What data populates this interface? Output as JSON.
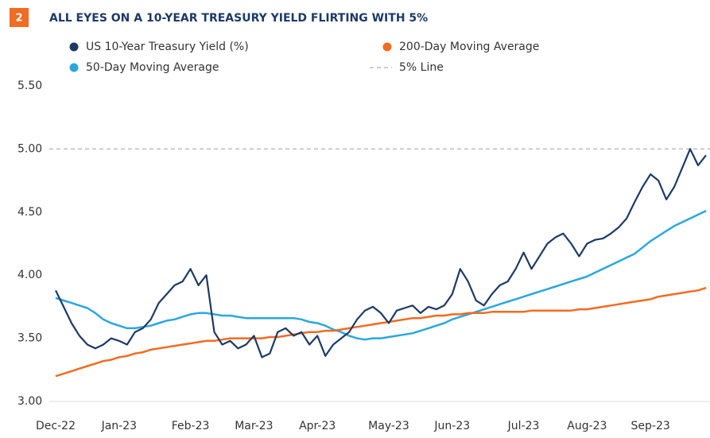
{
  "chart_data": {
    "type": "line",
    "badge": "2",
    "title": "ALL EYES ON A 10-YEAR TREASURY YIELD FLIRTING WITH 5%",
    "categories": [
      "Dec-22",
      null,
      null,
      null,
      null,
      null,
      null,
      null,
      "Jan-23",
      null,
      null,
      null,
      null,
      null,
      null,
      null,
      null,
      "Feb-23",
      null,
      null,
      null,
      null,
      null,
      null,
      null,
      "Mar-23",
      null,
      null,
      null,
      null,
      null,
      null,
      null,
      "Apr-23",
      null,
      null,
      null,
      null,
      null,
      null,
      null,
      null,
      "May-23",
      null,
      null,
      null,
      null,
      null,
      null,
      null,
      "Jun-23",
      null,
      null,
      null,
      null,
      null,
      null,
      null,
      null,
      "Jul-23",
      null,
      null,
      null,
      null,
      null,
      null,
      null,
      "Aug-23",
      null,
      null,
      null,
      null,
      null,
      null,
      null,
      "Sep-23",
      null,
      null,
      null,
      null,
      null,
      null,
      null
    ],
    "series": [
      {
        "name": "US 10-Year Treasury Yield (%)",
        "color": "#1d3a66",
        "values": [
          3.88,
          3.75,
          3.62,
          3.52,
          3.45,
          3.42,
          3.45,
          3.5,
          3.48,
          3.45,
          3.55,
          3.58,
          3.65,
          3.78,
          3.85,
          3.92,
          3.95,
          4.05,
          3.92,
          4.0,
          3.55,
          3.45,
          3.48,
          3.42,
          3.45,
          3.52,
          3.35,
          3.38,
          3.55,
          3.58,
          3.52,
          3.55,
          3.45,
          3.52,
          3.36,
          3.45,
          3.5,
          3.55,
          3.65,
          3.72,
          3.75,
          3.7,
          3.62,
          3.72,
          3.74,
          3.76,
          3.7,
          3.75,
          3.73,
          3.76,
          3.85,
          4.05,
          3.95,
          3.8,
          3.76,
          3.85,
          3.92,
          3.95,
          4.05,
          4.18,
          4.05,
          4.15,
          4.25,
          4.3,
          4.33,
          4.25,
          4.15,
          4.25,
          4.28,
          4.29,
          4.33,
          4.38,
          4.45,
          4.58,
          4.7,
          4.8,
          4.75,
          4.6,
          4.7,
          4.85,
          5.0,
          4.87,
          4.95
        ]
      },
      {
        "name": "200-Day Moving Average",
        "color": "#f26b21",
        "values": [
          3.2,
          3.22,
          3.24,
          3.26,
          3.28,
          3.3,
          3.32,
          3.33,
          3.35,
          3.36,
          3.38,
          3.39,
          3.41,
          3.42,
          3.43,
          3.44,
          3.45,
          3.46,
          3.47,
          3.48,
          3.48,
          3.49,
          3.5,
          3.5,
          3.5,
          3.5,
          3.5,
          3.51,
          3.51,
          3.52,
          3.53,
          3.54,
          3.55,
          3.55,
          3.56,
          3.56,
          3.57,
          3.58,
          3.59,
          3.6,
          3.61,
          3.62,
          3.63,
          3.64,
          3.65,
          3.66,
          3.66,
          3.67,
          3.68,
          3.68,
          3.69,
          3.69,
          3.7,
          3.7,
          3.7,
          3.71,
          3.71,
          3.71,
          3.71,
          3.71,
          3.72,
          3.72,
          3.72,
          3.72,
          3.72,
          3.72,
          3.73,
          3.73,
          3.74,
          3.75,
          3.76,
          3.77,
          3.78,
          3.79,
          3.8,
          3.81,
          3.83,
          3.84,
          3.85,
          3.86,
          3.87,
          3.88,
          3.9
        ]
      },
      {
        "name": "50-Day Moving Average",
        "color": "#2aa7df",
        "values": [
          3.82,
          3.8,
          3.78,
          3.76,
          3.74,
          3.7,
          3.65,
          3.62,
          3.6,
          3.58,
          3.58,
          3.59,
          3.6,
          3.62,
          3.64,
          3.65,
          3.67,
          3.69,
          3.7,
          3.7,
          3.69,
          3.68,
          3.68,
          3.67,
          3.66,
          3.66,
          3.66,
          3.66,
          3.66,
          3.66,
          3.66,
          3.65,
          3.63,
          3.62,
          3.6,
          3.57,
          3.55,
          3.52,
          3.5,
          3.49,
          3.5,
          3.5,
          3.51,
          3.52,
          3.53,
          3.54,
          3.56,
          3.58,
          3.6,
          3.62,
          3.65,
          3.67,
          3.69,
          3.71,
          3.73,
          3.75,
          3.77,
          3.79,
          3.81,
          3.83,
          3.85,
          3.87,
          3.89,
          3.91,
          3.93,
          3.95,
          3.97,
          3.99,
          4.02,
          4.05,
          4.08,
          4.11,
          4.14,
          4.17,
          4.22,
          4.27,
          4.31,
          4.35,
          4.39,
          4.42,
          4.45,
          4.48,
          4.51
        ]
      }
    ],
    "reference_line": {
      "name": "5% Line",
      "value": 5,
      "color": "#bdbdbd"
    },
    "ylim": [
      3,
      5.5
    ],
    "yticks": [
      {
        "value": 3,
        "label": "3.00"
      },
      {
        "value": 3.5,
        "label": "3.50"
      },
      {
        "value": 4,
        "label": "4.00"
      },
      {
        "value": 4.5,
        "label": "4.50"
      },
      {
        "value": 5,
        "label": "5.00"
      },
      {
        "value": 5.5,
        "label": "5.50"
      }
    ],
    "grid": false
  }
}
